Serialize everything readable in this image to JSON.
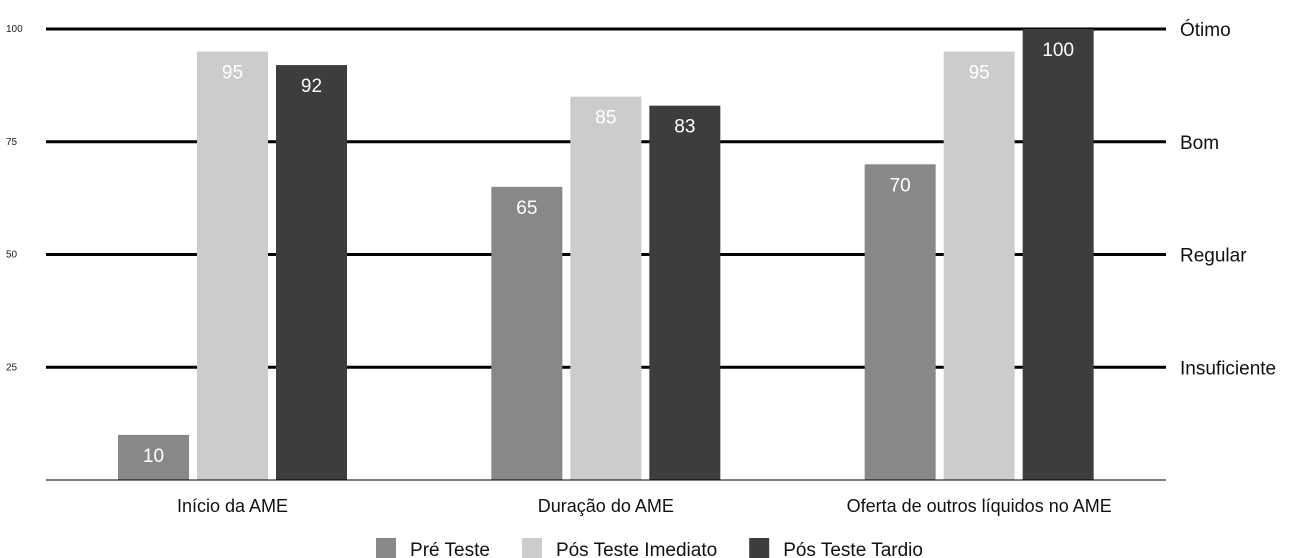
{
  "chart_data": {
    "type": "bar",
    "categories": [
      "Início da AME",
      "Duração do AME",
      "Oferta de outros líquidos no AME"
    ],
    "series": [
      {
        "name": "Pré Teste",
        "color": "#888888",
        "label_color": "#ffffff",
        "values": [
          10,
          65,
          70
        ]
      },
      {
        "name": "Pós Teste Imediato",
        "color": "#cccccc",
        "label_color": "#ffffff",
        "values": [
          95,
          85,
          95
        ]
      },
      {
        "name": "Pós Teste Tardio",
        "color": "#3d3d3d",
        "label_color": "#ffffff",
        "values": [
          92,
          83,
          100
        ]
      }
    ],
    "ylim": [
      0,
      100
    ],
    "yticks": [
      25,
      50,
      75,
      100
    ],
    "reference_lines": [
      {
        "value": 100,
        "label": "Ótimo"
      },
      {
        "value": 75,
        "label": "Bom"
      },
      {
        "value": 50,
        "label": "Regular"
      },
      {
        "value": 25,
        "label": "Insuficiente"
      }
    ],
    "legend_position": "bottom-center",
    "title": "",
    "xlabel": "",
    "ylabel": ""
  }
}
